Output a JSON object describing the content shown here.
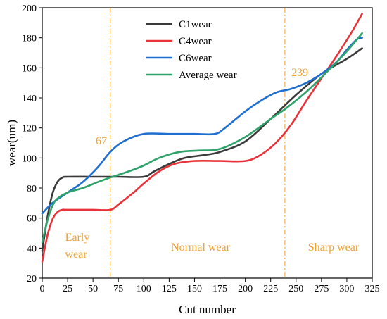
{
  "chart_data": {
    "type": "line",
    "xlabel": "Cut number",
    "ylabel": "wear(um)",
    "xlim": [
      0,
      325
    ],
    "ylim": [
      20,
      200
    ],
    "xticks": [
      0,
      25,
      50,
      75,
      100,
      125,
      150,
      175,
      200,
      225,
      250,
      275,
      300,
      325
    ],
    "yticks": [
      20,
      40,
      60,
      80,
      100,
      120,
      140,
      160,
      180,
      200
    ],
    "grid": false,
    "legend_position": "top-center",
    "series": [
      {
        "name": "C1wear",
        "color": "#3a3a3a",
        "points": [
          [
            0,
            38
          ],
          [
            5,
            60
          ],
          [
            10,
            76
          ],
          [
            15,
            84
          ],
          [
            20,
            87
          ],
          [
            25,
            87.5
          ],
          [
            50,
            87.5
          ],
          [
            75,
            87.5
          ],
          [
            100,
            87.5
          ],
          [
            110,
            91
          ],
          [
            125,
            96
          ],
          [
            140,
            100
          ],
          [
            160,
            102
          ],
          [
            175,
            104
          ],
          [
            200,
            111
          ],
          [
            225,
            126
          ],
          [
            250,
            142
          ],
          [
            275,
            156
          ],
          [
            300,
            166
          ],
          [
            315,
            173
          ]
        ]
      },
      {
        "name": "C4wear",
        "color": "#e8333a",
        "points": [
          [
            0,
            31
          ],
          [
            5,
            48
          ],
          [
            10,
            59
          ],
          [
            15,
            64
          ],
          [
            20,
            65.5
          ],
          [
            25,
            65.5
          ],
          [
            50,
            65.5
          ],
          [
            67,
            65.5
          ],
          [
            75,
            69
          ],
          [
            90,
            77
          ],
          [
            100,
            83
          ],
          [
            115,
            91
          ],
          [
            130,
            96
          ],
          [
            150,
            98
          ],
          [
            175,
            98
          ],
          [
            200,
            98
          ],
          [
            215,
            102
          ],
          [
            230,
            110
          ],
          [
            245,
            122
          ],
          [
            260,
            138
          ],
          [
            275,
            153
          ],
          [
            290,
            168
          ],
          [
            305,
            184
          ],
          [
            315,
            196
          ]
        ]
      },
      {
        "name": "C6wear",
        "color": "#1f6fd0",
        "points": [
          [
            0,
            63
          ],
          [
            10,
            70
          ],
          [
            25,
            77
          ],
          [
            40,
            84
          ],
          [
            55,
            94
          ],
          [
            67,
            104
          ],
          [
            80,
            111
          ],
          [
            100,
            116
          ],
          [
            125,
            116
          ],
          [
            150,
            116
          ],
          [
            170,
            116
          ],
          [
            180,
            120
          ],
          [
            200,
            131
          ],
          [
            215,
            138
          ],
          [
            230,
            143.5
          ],
          [
            245,
            146
          ],
          [
            260,
            150
          ],
          [
            275,
            156
          ],
          [
            290,
            164
          ],
          [
            300,
            172
          ],
          [
            310,
            179
          ],
          [
            315,
            180
          ]
        ]
      },
      {
        "name": "Average wear",
        "color": "#2fa36b",
        "points": [
          [
            0,
            44
          ],
          [
            5,
            58
          ],
          [
            10,
            68
          ],
          [
            15,
            73
          ],
          [
            25,
            77
          ],
          [
            40,
            80
          ],
          [
            55,
            84
          ],
          [
            67,
            87
          ],
          [
            85,
            91
          ],
          [
            100,
            95
          ],
          [
            115,
            100
          ],
          [
            135,
            104
          ],
          [
            155,
            105
          ],
          [
            175,
            106
          ],
          [
            200,
            114
          ],
          [
            225,
            126
          ],
          [
            240,
            133
          ],
          [
            260,
            144
          ],
          [
            280,
            157
          ],
          [
            300,
            171
          ],
          [
            315,
            183
          ]
        ]
      }
    ],
    "vertical_markers": [
      {
        "x": 67,
        "label": "67",
        "color": "#f0a030"
      },
      {
        "x": 239,
        "label": "239",
        "color": "#f0a030"
      }
    ],
    "regions": [
      {
        "lines": [
          "Early",
          "wear"
        ],
        "color": "#f0a030"
      },
      {
        "lines": [
          "Normal wear"
        ],
        "color": "#f0a030"
      },
      {
        "lines": [
          "Sharp wear"
        ],
        "color": "#f0a030"
      }
    ]
  }
}
